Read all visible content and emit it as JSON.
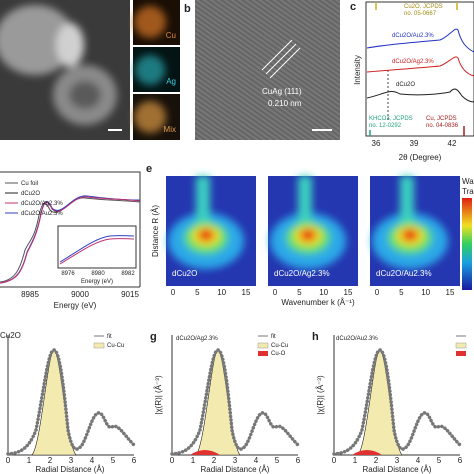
{
  "a": {
    "maps": [
      "Cu",
      "Ag",
      "Mix"
    ]
  },
  "b": {
    "label": "b",
    "lattice": "CuAg (111)",
    "spacing": "0.210 nm"
  },
  "c": {
    "label": "c",
    "ref_cu2o": [
      "Cu2O, JCPDS",
      "no. 05-0667"
    ],
    "curves": [
      "dCu2O/Au2.3%",
      "dCu2O/Ag2.3%",
      "dCu2O"
    ],
    "ref_khco3": [
      "KHCO3, JCPDS",
      "no. 12-0292"
    ],
    "ref_cu": [
      "Cu, JCPDS",
      "no. 04-0836"
    ],
    "xticks": [
      "36",
      "39",
      "42"
    ],
    "ylabel": "Intensity",
    "xlabel": "2θ (Degree)"
  },
  "d": {
    "legend": [
      "Cu foil",
      "dCu2O",
      "dCu2O/Ag2.3%",
      "dCu2O/Au2.3%"
    ],
    "xticks": [
      "8985",
      "9000",
      "9015"
    ],
    "xlabel": "Energy (eV)",
    "inset": {
      "xticks": [
        "8976",
        "8980",
        "8982"
      ],
      "xlabel": "Energy (eV)"
    }
  },
  "e": {
    "label": "e",
    "ylabel": "Distance R (Å)",
    "xlabel": "Wavenumber k (Å⁻¹)",
    "plots": [
      "dCu2O",
      "dCu2O/Ag2.3%",
      "dCu2O/Au2.3%"
    ],
    "xticks": [
      "0",
      "5",
      "10",
      "15"
    ],
    "colorbar": [
      "Wav",
      "Trans"
    ]
  },
  "f": {
    "title": "Cu2O",
    "legend": [
      "fit",
      "Cu-Cu"
    ],
    "xticks": [
      "0",
      "1",
      "2",
      "3",
      "4",
      "5",
      "6"
    ],
    "xlabel": "Radial Distance (Å)"
  },
  "g": {
    "label": "g",
    "title": "dCu2O/Ag2.3%",
    "legend": [
      "fit",
      "Cu-Cu",
      "Cu-O"
    ],
    "ylabel": "|χ(R)| (Å⁻³)",
    "xticks": [
      "0",
      "1",
      "2",
      "3",
      "4",
      "5",
      "6"
    ],
    "xlabel": "Radial Distance (Å)"
  },
  "h": {
    "label": "h",
    "title": "dCu2O/Au2.3%",
    "ylabel": "|χ(R)| (Å⁻³)",
    "xticks": [
      "0",
      "1",
      "2",
      "3",
      "4",
      "5",
      "6"
    ],
    "xlabel": "Radial Distance (Å)"
  }
}
